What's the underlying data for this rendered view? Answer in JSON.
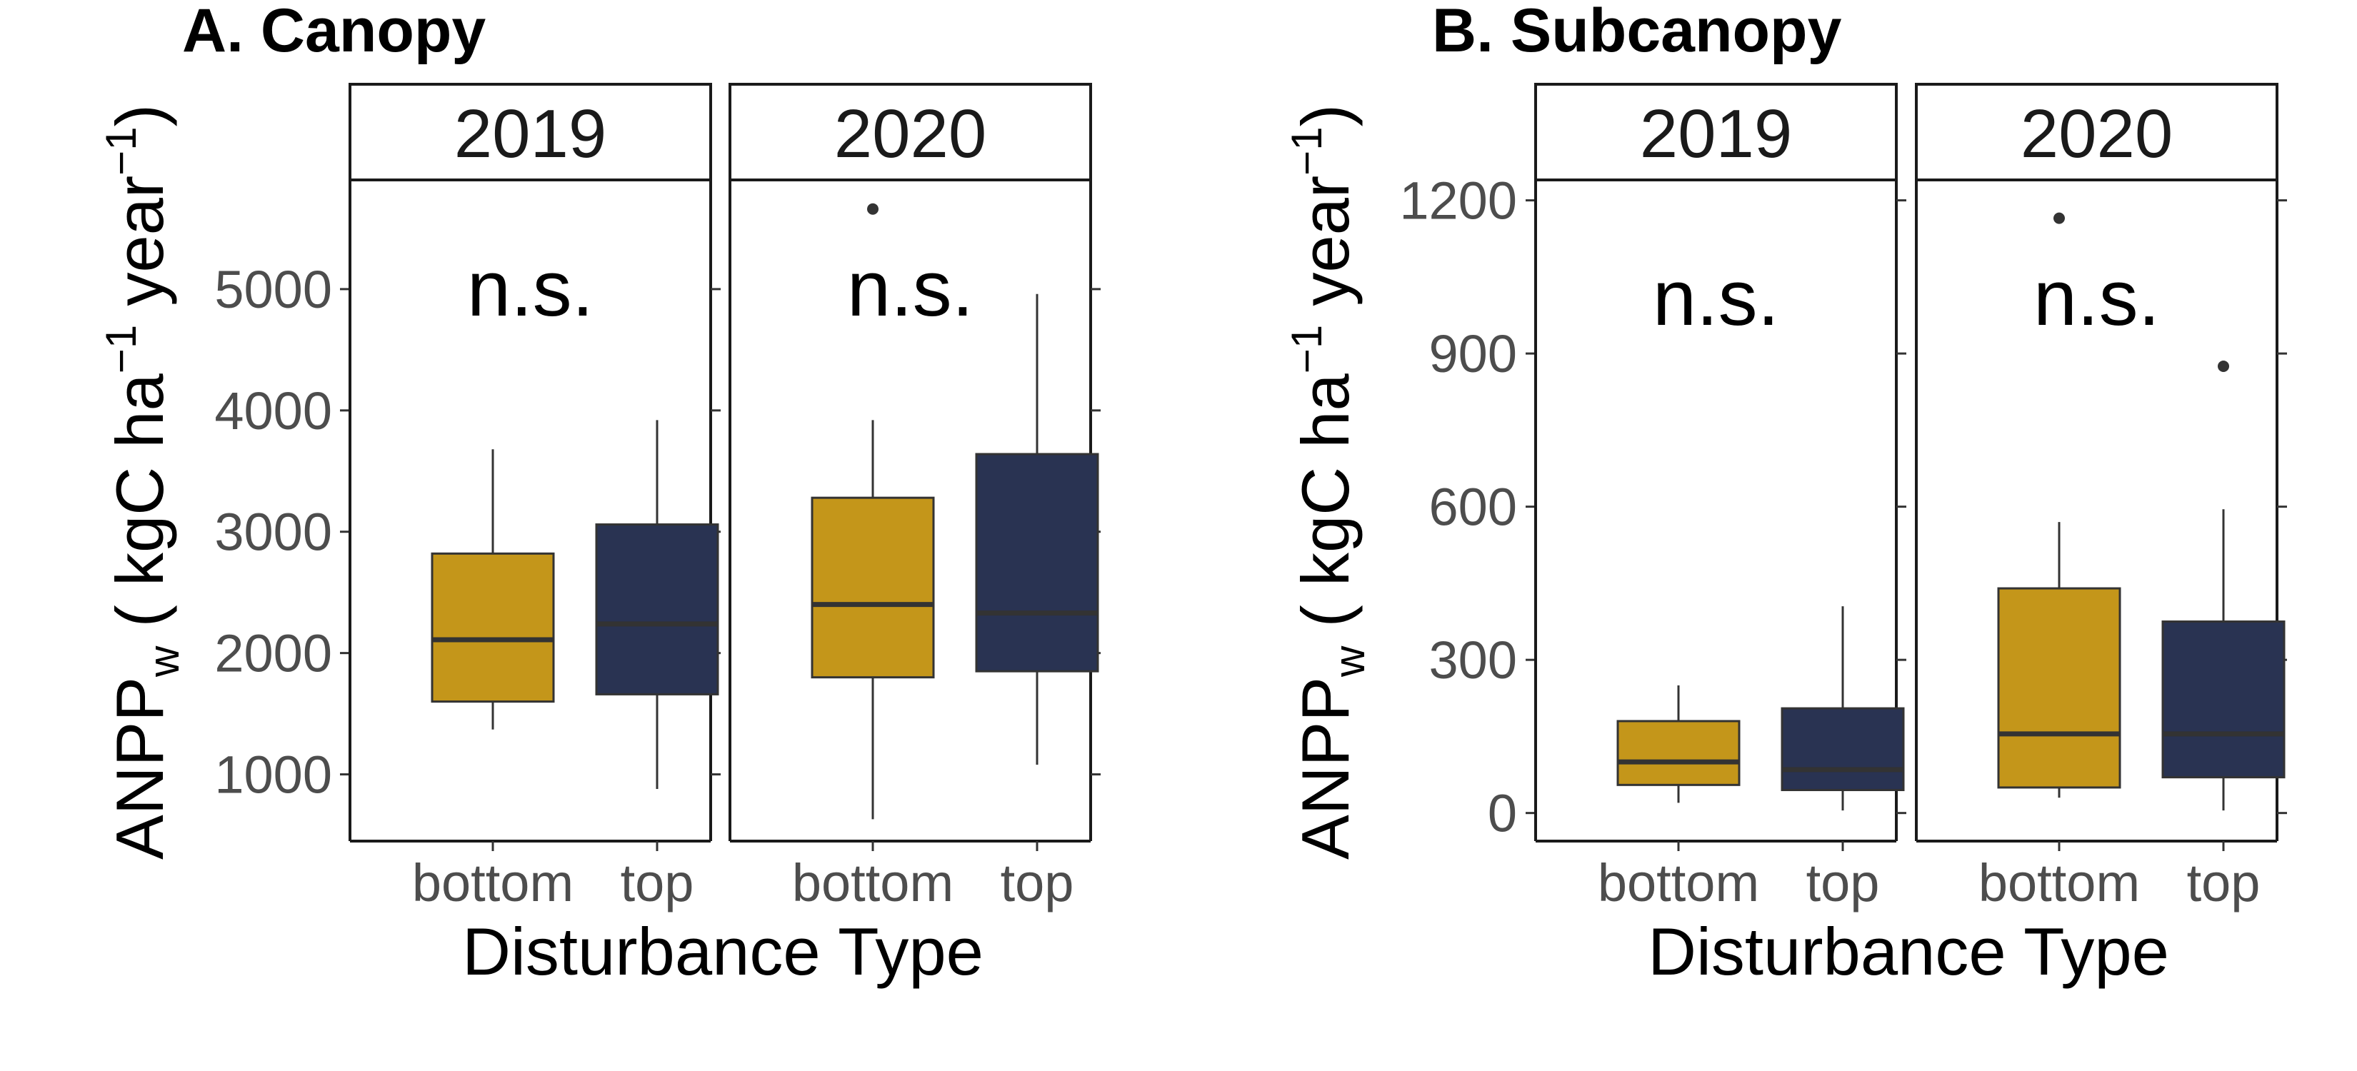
{
  "chart_data": [
    {
      "type": "box",
      "title": "A. Canopy",
      "xlabel": "Disturbance Type",
      "ylabel": {
        "base": "ANPP",
        "sub": "w",
        "open": " ( kgC ha",
        "sup1": "−1",
        "mid": " year",
        "sup2": "−1",
        "close": ")"
      },
      "ylim": [
        450,
        5900
      ],
      "yticks": [
        "1000",
        "2000",
        "3000",
        "4000",
        "5000"
      ],
      "facets": [
        {
          "label": "2019",
          "annotation": "n.s.",
          "groups": [
            {
              "category": "bottom",
              "color": "#c4961a",
              "min": 1370,
              "q1": 1600,
              "median": 2110,
              "q3": 2820,
              "max": 3680,
              "outliers": []
            },
            {
              "category": "top",
              "color": "#293352",
              "min": 880,
              "q1": 1660,
              "median": 2240,
              "q3": 3060,
              "max": 3920,
              "outliers": []
            }
          ]
        },
        {
          "label": "2020",
          "annotation": "n.s.",
          "groups": [
            {
              "category": "bottom",
              "color": "#c4961a",
              "min": 630,
              "q1": 1800,
              "median": 2400,
              "q3": 3280,
              "max": 3920,
              "outliers": [
                5660
              ]
            },
            {
              "category": "top",
              "color": "#293352",
              "min": 1080,
              "q1": 1850,
              "median": 2330,
              "q3": 3640,
              "max": 4960,
              "outliers": []
            }
          ]
        }
      ]
    },
    {
      "type": "box",
      "title": "B. Subcanopy",
      "xlabel": "Disturbance Type",
      "ylabel": {
        "base": "ANPP",
        "sub": "w",
        "open": " ( kgC ha",
        "sup1": "−1",
        "mid": " year",
        "sup2": "−1",
        "close": ")"
      },
      "ylim": [
        -55,
        1240
      ],
      "yticks": [
        "0",
        "300",
        "600",
        "900",
        "1200"
      ],
      "facets": [
        {
          "label": "2019",
          "annotation": "n.s.",
          "groups": [
            {
              "category": "bottom",
              "color": "#c4961a",
              "min": 20,
              "q1": 55,
              "median": 100,
              "q3": 180,
              "max": 250,
              "outliers": []
            },
            {
              "category": "top",
              "color": "#293352",
              "min": 5,
              "q1": 45,
              "median": 85,
              "q3": 205,
              "max": 405,
              "outliers": []
            }
          ]
        },
        {
          "label": "2020",
          "annotation": "n.s.",
          "groups": [
            {
              "category": "bottom",
              "color": "#c4961a",
              "min": 30,
              "q1": 50,
              "median": 155,
              "q3": 440,
              "max": 570,
              "outliers": [
                1165
              ]
            },
            {
              "category": "top",
              "color": "#293352",
              "min": 5,
              "q1": 70,
              "median": 155,
              "q3": 375,
              "max": 595,
              "outliers": [
                875
              ]
            }
          ]
        }
      ]
    }
  ]
}
